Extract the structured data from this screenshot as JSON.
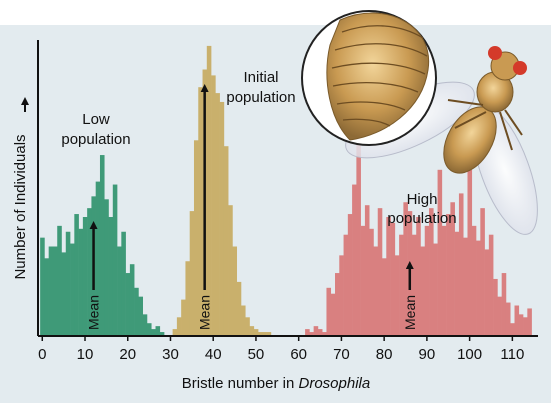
{
  "chart_data": {
    "type": "bar",
    "title": "",
    "xlabel_prefix": "Bristle number in ",
    "xlabel_italic": "Drosophila",
    "ylabel": "Number of Individuals",
    "xlim": [
      -1,
      116
    ],
    "ylim": [
      0,
      100
    ],
    "x_ticks": [
      0,
      10,
      20,
      30,
      40,
      50,
      60,
      70,
      80,
      90,
      100,
      110
    ],
    "annotations": {
      "low": [
        "Low",
        "population"
      ],
      "initial": [
        "Initial",
        "population"
      ],
      "high": [
        "High",
        "population"
      ],
      "mean": "Mean"
    },
    "colors": {
      "low": "#3f9a78",
      "initial": "#c9b06c",
      "high": "#d98080",
      "axis": "#111111",
      "background": "#e3ebef"
    },
    "series": [
      {
        "name": "Low population",
        "color_key": "low",
        "mean": 12,
        "x": [
          0,
          1,
          2,
          3,
          4,
          5,
          6,
          7,
          8,
          9,
          10,
          11,
          12,
          13,
          14,
          15,
          16,
          17,
          18,
          19,
          20,
          21,
          22,
          23,
          24,
          25,
          26,
          27,
          28
        ],
        "values": [
          33,
          26,
          30,
          30,
          37,
          28,
          35,
          31,
          41,
          36,
          40,
          43,
          47,
          52,
          61,
          46,
          40,
          51,
          30,
          35,
          21,
          24,
          16,
          13,
          7,
          4,
          2,
          3,
          1
        ]
      },
      {
        "name": "Initial population",
        "color_key": "initial",
        "mean": 38,
        "x": [
          31,
          32,
          33,
          34,
          35,
          36,
          37,
          38,
          39,
          40,
          41,
          42,
          43,
          44,
          45,
          46,
          47,
          48,
          49,
          50,
          51,
          52,
          53
        ],
        "values": [
          2,
          6,
          12,
          25,
          42,
          66,
          84,
          90,
          98,
          88,
          82,
          79,
          64,
          44,
          30,
          18,
          10,
          6,
          3,
          2,
          1,
          1,
          1
        ]
      },
      {
        "name": "High population",
        "color_key": "high",
        "mean": 86,
        "x": [
          62,
          63,
          64,
          65,
          66,
          67,
          68,
          69,
          70,
          71,
          72,
          73,
          74,
          75,
          76,
          77,
          78,
          79,
          80,
          81,
          82,
          83,
          84,
          85,
          86,
          87,
          88,
          89,
          90,
          91,
          92,
          93,
          94,
          95,
          96,
          97,
          98,
          99,
          100,
          101,
          102,
          103,
          104,
          105,
          106,
          107,
          108,
          109,
          110,
          111,
          112,
          113,
          114
        ],
        "values": [
          2,
          1,
          3,
          2,
          1,
          16,
          14,
          21,
          27,
          34,
          41,
          51,
          65,
          37,
          44,
          36,
          30,
          43,
          26,
          40,
          38,
          27,
          34,
          45,
          42,
          34,
          40,
          30,
          37,
          43,
          31,
          56,
          37,
          41,
          45,
          35,
          48,
          33,
          56,
          37,
          32,
          43,
          29,
          34,
          19,
          13,
          21,
          11,
          4,
          10,
          7,
          6,
          9
        ]
      }
    ]
  }
}
